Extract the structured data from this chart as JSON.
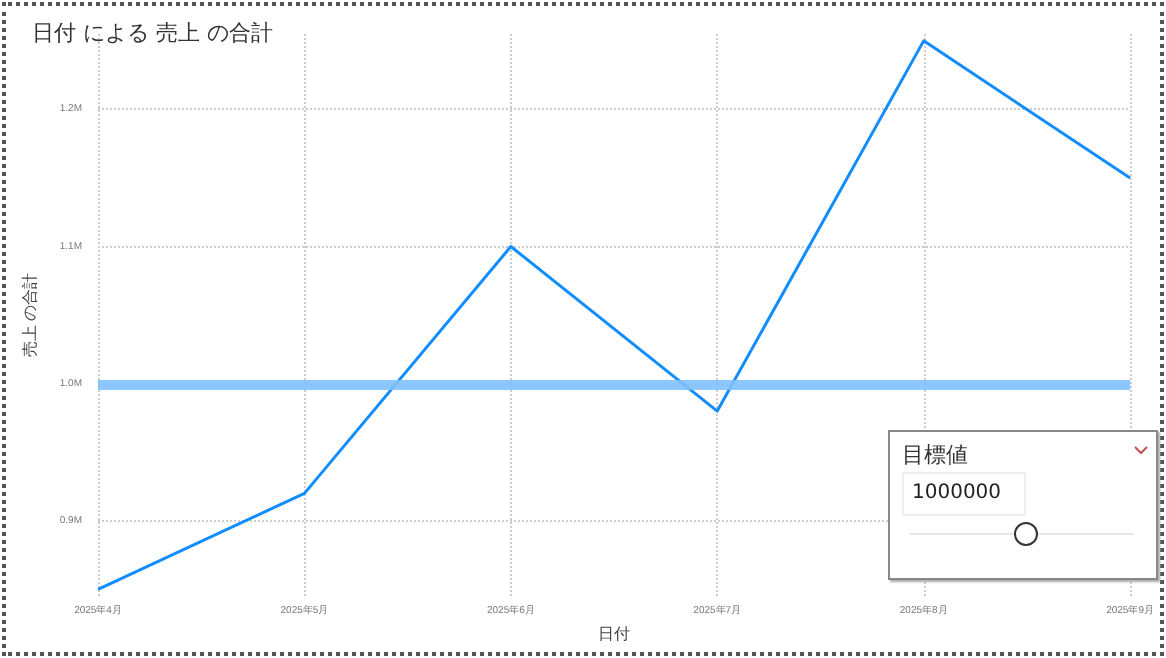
{
  "chart_data": {
    "type": "line",
    "title": "日付 による 売上 の合計",
    "xlabel": "日付",
    "ylabel": "売上 の合計",
    "categories": [
      "2025年4月",
      "2025年5月",
      "2025年6月",
      "2025年7月",
      "2025年8月",
      "2025年9月"
    ],
    "series": [
      {
        "color": "#118dff",
        "values": [
          850000,
          920000,
          1100000,
          980000,
          1250000,
          1150000
        ]
      }
    ],
    "ylim": [
      845000,
      1255000
    ],
    "yticks": [
      {
        "value": 900000,
        "label": "0.9M"
      },
      {
        "value": 1000000,
        "label": "1.0M"
      },
      {
        "value": 1100000,
        "label": "1.1M"
      },
      {
        "value": 1200000,
        "label": "1.2M"
      }
    ],
    "ref_lines": [
      {
        "axis": "y",
        "value": 1000000,
        "color": "#7fc1ff"
      }
    ],
    "annotations": [
      "目標値",
      "1000000"
    ],
    "grid": true,
    "marker": "none",
    "line_style": "solid"
  }
}
